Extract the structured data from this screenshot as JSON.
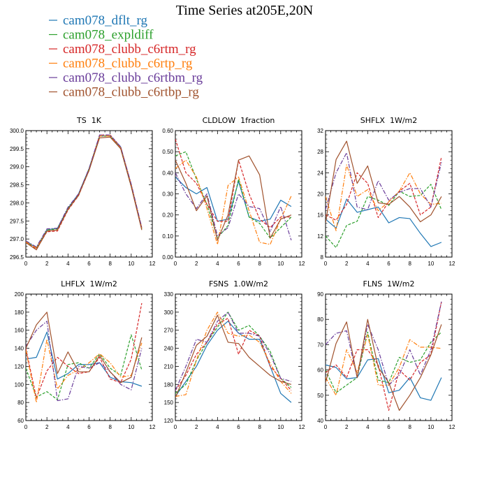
{
  "figure_title": "Time Series at205E,20N",
  "colors": {
    "cam078_dflt_rg": "#1f77b4",
    "cam078_expldiff": "#2ca02c",
    "cam078_clubb_c6rtm_rg": "#d62728",
    "cam078_clubb_c6rtp_rg": "#ff7f0e",
    "cam078_clubb_c6rtbm_rg": "#6a3d9a",
    "cam078_clubb_c6rtbp_rg": "#a0522d"
  },
  "legend": [
    {
      "label": "cam078_dflt_rg",
      "color": "#1f77b4"
    },
    {
      "label": "cam078_expldiff",
      "color": "#2ca02c"
    },
    {
      "label": "cam078_clubb_c6rtm_rg",
      "color": "#d62728"
    },
    {
      "label": "cam078_clubb_c6rtp_rg",
      "color": "#ff7f0e"
    },
    {
      "label": "cam078_clubb_c6rtbm_rg",
      "color": "#6a3d9a"
    },
    {
      "label": "cam078_clubb_c6rtbp_rg",
      "color": "#a0522d"
    }
  ],
  "chart_data": [
    {
      "type": "line",
      "title": "TS  1K",
      "x": [
        0,
        1,
        2,
        3,
        4,
        5,
        6,
        7,
        8,
        9,
        10,
        11
      ],
      "xlim": [
        0,
        12
      ],
      "xticks": [
        "0",
        "2",
        "4",
        "6",
        "8",
        "10",
        "12"
      ],
      "ylim": [
        296.5,
        300.0
      ],
      "yticks": [
        "296.5",
        "297.0",
        "297.5",
        "298.0",
        "298.5",
        "299.0",
        "299.5",
        "300.0"
      ],
      "series": [
        {
          "name": "cam078_dflt_rg",
          "dash": "solid",
          "values": [
            296.95,
            296.75,
            297.25,
            297.3,
            297.85,
            298.25,
            298.95,
            299.85,
            299.85,
            299.55,
            298.5,
            297.3
          ]
        },
        {
          "name": "cam078_expldiff",
          "dash": "dash",
          "values": [
            296.92,
            296.75,
            297.25,
            297.28,
            297.85,
            298.2,
            298.95,
            299.85,
            299.85,
            299.5,
            298.45,
            297.28
          ]
        },
        {
          "name": "cam078_clubb_c6rtm_rg",
          "dash": "dash",
          "values": [
            296.9,
            296.72,
            297.2,
            297.22,
            297.8,
            298.2,
            298.9,
            299.88,
            299.88,
            299.55,
            298.5,
            297.3
          ]
        },
        {
          "name": "cam078_clubb_c6rtp_rg",
          "dash": "dashdot",
          "values": [
            296.92,
            296.75,
            297.22,
            297.25,
            297.82,
            298.22,
            298.92,
            299.85,
            299.85,
            299.52,
            298.5,
            297.3
          ]
        },
        {
          "name": "cam078_clubb_c6rtbm_rg",
          "dash": "dashdot",
          "values": [
            296.95,
            296.78,
            297.28,
            297.3,
            297.88,
            298.25,
            298.95,
            299.88,
            299.88,
            299.55,
            298.52,
            297.32
          ]
        },
        {
          "name": "cam078_clubb_c6rtbp_rg",
          "dash": "solid",
          "values": [
            296.9,
            296.7,
            297.22,
            297.25,
            297.82,
            298.22,
            298.9,
            299.8,
            299.82,
            299.5,
            298.45,
            297.25
          ]
        }
      ]
    },
    {
      "type": "line",
      "title": "CLDLOW  1fraction",
      "x": [
        0,
        1,
        2,
        3,
        4,
        5,
        6,
        7,
        8,
        9,
        10,
        11
      ],
      "xlim": [
        0,
        12
      ],
      "xticks": [
        "0",
        "2",
        "4",
        "6",
        "8",
        "10",
        "12"
      ],
      "ylim": [
        0.0,
        0.6
      ],
      "yticks": [
        "0.00",
        "0.10",
        "0.20",
        "0.30",
        "0.40",
        "0.50",
        "0.60"
      ],
      "series": [
        {
          "name": "cam078_dflt_rg",
          "dash": "solid",
          "values": [
            0.38,
            0.33,
            0.3,
            0.33,
            0.17,
            0.18,
            0.36,
            0.19,
            0.17,
            0.18,
            0.27,
            0.24
          ]
        },
        {
          "name": "cam078_expldiff",
          "dash": "dash",
          "values": [
            0.48,
            0.5,
            0.37,
            0.25,
            0.09,
            0.15,
            0.37,
            0.19,
            0.16,
            0.09,
            0.14,
            0.19
          ]
        },
        {
          "name": "cam078_clubb_c6rtm_rg",
          "dash": "dash",
          "values": [
            0.56,
            0.4,
            0.35,
            0.25,
            0.17,
            0.17,
            0.46,
            0.3,
            0.18,
            0.14,
            0.19,
            0.19
          ]
        },
        {
          "name": "cam078_clubb_c6rtp_rg",
          "dash": "dashdot",
          "values": [
            0.42,
            0.46,
            0.38,
            0.23,
            0.06,
            0.34,
            0.38,
            0.22,
            0.07,
            0.06,
            0.18,
            0.29
          ]
        },
        {
          "name": "cam078_clubb_c6rtbm_rg",
          "dash": "dashdot",
          "values": [
            0.4,
            0.3,
            0.23,
            0.3,
            0.1,
            0.14,
            0.3,
            0.24,
            0.23,
            0.12,
            0.24,
            0.08
          ]
        },
        {
          "name": "cam078_clubb_c6rtbp_rg",
          "dash": "solid",
          "values": [
            0.46,
            0.35,
            0.22,
            0.29,
            0.08,
            0.2,
            0.46,
            0.48,
            0.39,
            0.09,
            0.18,
            0.2
          ]
        }
      ]
    },
    {
      "type": "line",
      "title": "SHFLX  1W/m2",
      "x": [
        0,
        1,
        2,
        3,
        4,
        5,
        6,
        7,
        8,
        9,
        10,
        11
      ],
      "xlim": [
        0,
        12
      ],
      "xticks": [
        "0",
        "2",
        "4",
        "6",
        "8",
        "10",
        "12"
      ],
      "ylim": [
        8,
        32
      ],
      "yticks": [
        "8",
        "12",
        "16",
        "20",
        "24",
        "28",
        "32"
      ],
      "series": [
        {
          "name": "cam078_dflt_rg",
          "dash": "solid",
          "values": [
            15.2,
            13.5,
            19.0,
            16.5,
            17.0,
            17.5,
            14.5,
            15.5,
            15.3,
            12.5,
            10.0,
            10.8
          ]
        },
        {
          "name": "cam078_expldiff",
          "dash": "dash",
          "values": [
            12.0,
            9.8,
            14.0,
            14.8,
            19.5,
            18.8,
            17.8,
            20.5,
            19.5,
            19.7,
            21.8,
            17.0
          ]
        },
        {
          "name": "cam078_clubb_c6rtm_rg",
          "dash": "dash",
          "values": [
            16.0,
            15.0,
            18.0,
            24.0,
            22.0,
            15.5,
            18.5,
            20.5,
            22.0,
            16.0,
            17.5,
            27.0
          ]
        },
        {
          "name": "cam078_clubb_c6rtp_rg",
          "dash": "dashdot",
          "values": [
            19.5,
            13.0,
            25.5,
            19.5,
            20.8,
            16.8,
            18.5,
            20.5,
            24.0,
            20.0,
            18.0,
            18.2
          ]
        },
        {
          "name": "cam078_clubb_c6rtbm_rg",
          "dash": "dashdot",
          "values": [
            17.0,
            24.0,
            27.8,
            17.5,
            17.0,
            22.5,
            18.8,
            20.3,
            21.0,
            21.0,
            17.5,
            26.0
          ]
        },
        {
          "name": "cam078_clubb_c6rtbp_rg",
          "dash": "solid",
          "values": [
            14.5,
            26.5,
            30.0,
            22.0,
            25.3,
            18.3,
            18.0,
            19.5,
            17.5,
            14.7,
            16.0,
            19.5
          ]
        }
      ]
    },
    {
      "type": "line",
      "title": "LHFLX  1W/m2",
      "x": [
        0,
        1,
        2,
        3,
        4,
        5,
        6,
        7,
        8,
        9,
        10,
        11
      ],
      "xlim": [
        0,
        12
      ],
      "xticks": [
        "0",
        "2",
        "4",
        "6",
        "8",
        "10",
        "12"
      ],
      "ylim": [
        60,
        200
      ],
      "yticks": [
        "60",
        "80",
        "100",
        "120",
        "140",
        "160",
        "180",
        "200"
      ],
      "series": [
        {
          "name": "cam078_dflt_rg",
          "dash": "solid",
          "values": [
            128,
            130,
            158,
            106,
            112,
            122,
            122,
            124,
            108,
            103,
            102,
            98
          ]
        },
        {
          "name": "cam078_expldiff",
          "dash": "dash",
          "values": [
            118,
            86,
            92,
            83,
            122,
            124,
            118,
            134,
            118,
            110,
            155,
            116
          ]
        },
        {
          "name": "cam078_clubb_c6rtm_rg",
          "dash": "dash",
          "values": [
            140,
            85,
            115,
            130,
            120,
            112,
            114,
            130,
            106,
            102,
            128,
            190
          ]
        },
        {
          "name": "cam078_clubb_c6rtp_rg",
          "dash": "dashdot",
          "values": [
            138,
            80,
            150,
            95,
            110,
            116,
            124,
            134,
            124,
            108,
            110,
            146
          ]
        },
        {
          "name": "cam078_clubb_c6rtbm_rg",
          "dash": "dashdot",
          "values": [
            142,
            160,
            170,
            82,
            84,
            120,
            118,
            124,
            114,
            100,
            94,
            140
          ]
        },
        {
          "name": "cam078_clubb_c6rtbp_rg",
          "dash": "solid",
          "values": [
            140,
            166,
            180,
            112,
            136,
            114,
            114,
            132,
            114,
            102,
            108,
            152
          ]
        }
      ]
    },
    {
      "type": "line",
      "title": "FSNS  1.0W/m2",
      "x": [
        0,
        1,
        2,
        3,
        4,
        5,
        6,
        7,
        8,
        9,
        10,
        11
      ],
      "xlim": [
        0,
        12
      ],
      "xticks": [
        "0",
        "2",
        "4",
        "6",
        "8",
        "10",
        "12"
      ],
      "ylim": [
        120,
        330
      ],
      "yticks": [
        "120",
        "150",
        "180",
        "210",
        "240",
        "270",
        "300",
        "330"
      ],
      "series": [
        {
          "name": "cam078_dflt_rg",
          "dash": "solid",
          "values": [
            160,
            185,
            210,
            245,
            270,
            285,
            265,
            255,
            255,
            210,
            165,
            150
          ]
        },
        {
          "name": "cam078_expldiff",
          "dash": "dash",
          "values": [
            165,
            180,
            220,
            250,
            275,
            300,
            270,
            278,
            260,
            235,
            190,
            175
          ]
        },
        {
          "name": "cam078_clubb_c6rtm_rg",
          "dash": "dash",
          "values": [
            170,
            195,
            230,
            250,
            280,
            290,
            230,
            270,
            260,
            210,
            190,
            170
          ]
        },
        {
          "name": "cam078_clubb_c6rtp_rg",
          "dash": "dashdot",
          "values": [
            160,
            163,
            220,
            270,
            300,
            265,
            260,
            262,
            250,
            215,
            185,
            165
          ]
        },
        {
          "name": "cam078_clubb_c6rtbm_rg",
          "dash": "dashdot",
          "values": [
            170,
            210,
            255,
            250,
            285,
            300,
            265,
            265,
            260,
            230,
            190,
            185
          ]
        },
        {
          "name": "cam078_clubb_c6rtbp_rg",
          "dash": "solid",
          "values": [
            158,
            200,
            245,
            260,
            295,
            250,
            248,
            225,
            210,
            195,
            185,
            180
          ]
        }
      ]
    },
    {
      "type": "line",
      "title": "FLNS  1W/m2",
      "x": [
        0,
        1,
        2,
        3,
        4,
        5,
        6,
        7,
        8,
        9,
        10,
        11
      ],
      "xlim": [
        0,
        12
      ],
      "xticks": [
        "0",
        "2",
        "4",
        "6",
        "8",
        "10",
        "12"
      ],
      "ylim": [
        40,
        90
      ],
      "yticks": [
        "40",
        "50",
        "60",
        "70",
        "80",
        "90"
      ],
      "series": [
        {
          "name": "cam078_dflt_rg",
          "dash": "solid",
          "values": [
            62,
            61,
            56.5,
            57,
            64,
            64.5,
            51,
            52,
            57,
            49,
            48,
            57
          ]
        },
        {
          "name": "cam078_expldiff",
          "dash": "dash",
          "values": [
            60,
            51,
            54,
            57,
            75,
            56,
            55,
            65,
            63,
            64,
            71,
            75
          ]
        },
        {
          "name": "cam078_clubb_c6rtm_rg",
          "dash": "dash",
          "values": [
            59,
            62,
            57,
            68,
            68,
            62,
            44,
            60,
            56,
            63,
            66,
            87
          ]
        },
        {
          "name": "cam078_clubb_c6rtp_rg",
          "dash": "dashdot",
          "values": [
            57,
            50,
            68,
            59,
            74,
            54,
            54,
            61,
            72,
            69,
            69,
            68.5
          ]
        },
        {
          "name": "cam078_clubb_c6rtbm_rg",
          "dash": "dashdot",
          "values": [
            70,
            74.5,
            75.5,
            57,
            78,
            68,
            54,
            58,
            68,
            58,
            68,
            87
          ]
        },
        {
          "name": "cam078_clubb_c6rtbp_rg",
          "dash": "solid",
          "values": [
            55,
            70.5,
            79,
            57,
            80,
            61,
            55,
            44,
            50,
            57,
            66,
            78
          ]
        }
      ]
    }
  ]
}
